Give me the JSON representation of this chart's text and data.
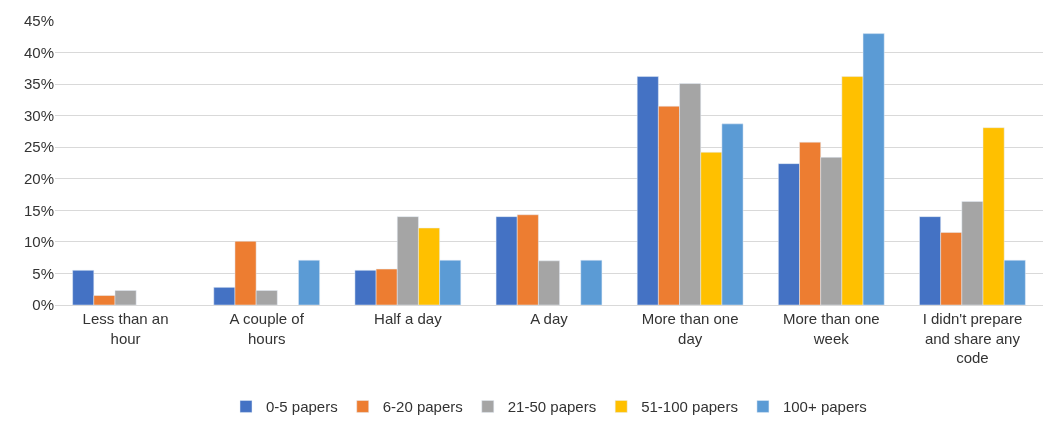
{
  "chart_data": {
    "type": "bar",
    "categories": [
      "Less than an hour",
      "A couple of hours",
      "Half a day",
      "A day",
      "More than one day",
      "More than one week",
      "I didn't prepare and share any code"
    ],
    "series": [
      {
        "name": "0-5 papers",
        "color": "#4472c4",
        "values": [
          5.5,
          2.8,
          5.5,
          14.0,
          36.2,
          22.4,
          14.0
        ]
      },
      {
        "name": "6-20 papers",
        "color": "#ed7d31",
        "values": [
          1.5,
          10.1,
          5.7,
          14.3,
          31.5,
          25.8,
          11.5
        ]
      },
      {
        "name": "21-50 papers",
        "color": "#a5a5a5",
        "values": [
          2.3,
          2.3,
          14.0,
          7.0,
          35.1,
          23.4,
          16.4
        ]
      },
      {
        "name": "51-100 papers",
        "color": "#ffc000",
        "values": [
          null,
          null,
          12.2,
          null,
          24.2,
          36.2,
          28.1
        ]
      },
      {
        "name": "100+ papers",
        "color": "#5b9bd5",
        "values": [
          null,
          7.1,
          7.1,
          7.1,
          28.7,
          43.0,
          7.1
        ]
      }
    ],
    "ylim": [
      0,
      45
    ],
    "yticks": [
      {
        "value": 0,
        "label": "0%"
      },
      {
        "value": 5,
        "label": "5%"
      },
      {
        "value": 10,
        "label": "10%"
      },
      {
        "value": 15,
        "label": "15%"
      },
      {
        "value": 20,
        "label": "20%"
      },
      {
        "value": 25,
        "label": "25%"
      },
      {
        "value": 30,
        "label": "30%"
      },
      {
        "value": 35,
        "label": "35%"
      },
      {
        "value": 40,
        "label": "40%"
      },
      {
        "value": 45,
        "label": "45%"
      }
    ],
    "grid": "y",
    "legend": "bottom"
  }
}
